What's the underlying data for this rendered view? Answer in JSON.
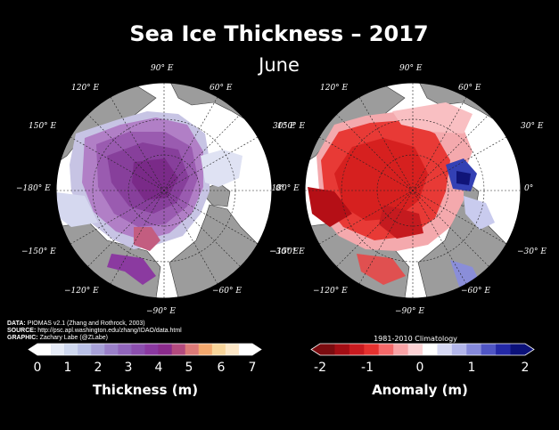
{
  "title": "Sea Ice Thickness – 2017",
  "subtitle": "June",
  "map_left": {
    "coords": {
      "n90": "90° E",
      "n120": "120° E",
      "n60": "60° E",
      "n150": "150° E",
      "n30": "30° E",
      "w180": "−180° E",
      "e0": "0°",
      "s150": "−150° E",
      "s30": "−30° E",
      "s120": "−120° E",
      "s60": "−60° E",
      "s90": "−90° E"
    }
  },
  "map_right": {
    "coords": {
      "n90": "90° E",
      "n120": "120° E",
      "n60": "60° E",
      "n150": "150° E",
      "n30": "30° E",
      "w180": "−180° E",
      "e0": "0°",
      "s150": "−150° E",
      "s30": "−30° E",
      "s120": "−120° E",
      "s60": "−60° E",
      "s90": "−90° E"
    }
  },
  "source": {
    "data_key": "DATA:",
    "data_val": "PIOMAS v2.1 (Zhang and Rothrock, 2003)",
    "source_key": "SOURCE:",
    "source_val": "http://psc.apl.washington.edu/zhang/IDAO/data.html",
    "graphic_key": "GRAPHIC:",
    "graphic_val": "Zachary Labe (@ZLabe)"
  },
  "colorbar_thickness": {
    "label": "Thickness (m)",
    "ticks": [
      "0",
      "1",
      "2",
      "3",
      "4",
      "5",
      "6",
      "7"
    ],
    "colors": [
      "#ffffff",
      "#e6ebf7",
      "#cfd8ef",
      "#b9c0e6",
      "#a7a1d8",
      "#9a80c9",
      "#9065bb",
      "#8b4eae",
      "#8a38a0",
      "#8a2b8c",
      "#b34a7e",
      "#dc7a78",
      "#f2a86e",
      "#f8d59a",
      "#fde8c8",
      "#ffffff"
    ]
  },
  "colorbar_anomaly": {
    "title": "1981-2010 Climatology",
    "label": "Anomaly (m)",
    "ticks": [
      "-2",
      "-1",
      "0",
      "1",
      "2"
    ],
    "colors": [
      "#7a0b0f",
      "#a30d14",
      "#c81a1f",
      "#e5312f",
      "#f4696a",
      "#f9a3a6",
      "#fcd2d4",
      "#ffffff",
      "#d7d9f4",
      "#b3b6ea",
      "#8589da",
      "#4f55c4",
      "#2328a6",
      "#0b1179"
    ]
  }
}
